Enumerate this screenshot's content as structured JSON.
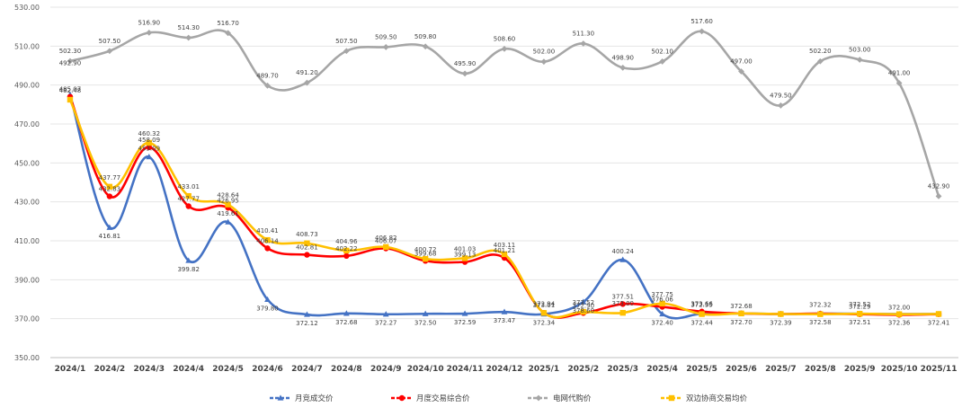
{
  "chart_data": {
    "type": "line",
    "title": "",
    "xlabel": "",
    "ylabel": "",
    "ylim": [
      350,
      530
    ],
    "yticks": [
      "350.00",
      "370.00",
      "390.00",
      "410.00",
      "430.00",
      "450.00",
      "470.00",
      "490.00",
      "510.00",
      "530.00"
    ],
    "categories": [
      "2024/1",
      "2024/2",
      "2024/3",
      "2024/4",
      "2024/5",
      "2024/6",
      "2024/7",
      "2024/8",
      "2024/9",
      "2024/10",
      "2024/11",
      "2024/12",
      "2025/1",
      "2025/2",
      "2025/3",
      "2025/4",
      "2025/5",
      "2025/6",
      "2025/7",
      "2025/8",
      "2025/9",
      "2025/10",
      "2025/11"
    ],
    "grid": true,
    "legend_position": "bottom",
    "series": [
      {
        "name": "月竞成交价",
        "color": "#4472C4",
        "marker": "triangle",
        "values": [
          485.07,
          416.81,
          453.09,
          399.82,
          419.61,
          379.8,
          372.12,
          372.68,
          372.27,
          372.5,
          372.59,
          373.47,
          372.34,
          378.6,
          400.24,
          372.4,
          372.44,
          372.7,
          372.39,
          372.58,
          372.51,
          372.36,
          372.41
        ],
        "labels": [
          "485.07",
          "416.81",
          "453.09",
          "399.82",
          "419.61",
          "379.80",
          "372.12",
          "372.68",
          "372.27",
          "372.50",
          "372.59",
          "373.47",
          "372.34",
          "378.60",
          "400.24",
          "372.40",
          "372.44",
          "372.70",
          "372.39",
          "372.58",
          "372.51",
          "372.36",
          "372.41"
        ]
      },
      {
        "name": "月度交易综合价",
        "color": "#FF0000",
        "marker": "circle",
        "values": [
          484.0,
          432.83,
          458.09,
          427.77,
          426.95,
          406.14,
          402.81,
          402.22,
          406.07,
          399.68,
          399.13,
          401.21,
          373.01,
          372.9,
          377.51,
          376.06,
          373.66,
          372.68,
          372.39,
          372.58,
          372.29,
          372.0,
          372.3
        ],
        "labels": [
          "",
          "432.83",
          "458.09",
          "427.77",
          "426.95",
          "406.14",
          "402.81",
          "402.22",
          "406.07",
          "399.68",
          "399.13",
          "401.21",
          "373.01",
          "372.90",
          "377.51",
          "376.06",
          "373.66",
          "372.68",
          "",
          "",
          "372.29",
          "372.00",
          ""
        ]
      },
      {
        "name": "电网代购价",
        "color": "#A6A6A6",
        "marker": "diamond",
        "values": [
          502.3,
          507.5,
          516.9,
          514.3,
          516.7,
          489.7,
          491.2,
          507.5,
          509.5,
          509.8,
          495.9,
          508.6,
          502.0,
          511.3,
          498.9,
          502.1,
          517.6,
          497.0,
          479.5,
          502.2,
          503.0,
          491.0,
          432.9
        ],
        "labels": [
          "502.30",
          "507.50",
          "516.90",
          "514.30",
          "516.70",
          "489.70",
          "491.20",
          "507.50",
          "509.50",
          "509.80",
          "495.90",
          "508.60",
          "502.00",
          "511.30",
          "498.90",
          "502.10",
          "517.60",
          "497.00",
          "479.50",
          "502.20",
          "503.00",
          "491.00",
          "432.90"
        ]
      },
      {
        "name": "双边协商交易均价",
        "color": "#FFC000",
        "marker": "square",
        "values": [
          482.48,
          437.77,
          460.32,
          433.01,
          428.64,
          410.41,
          408.73,
          404.96,
          406.82,
          400.72,
          401.03,
          403.11,
          372.94,
          373.52,
          373.0,
          377.75,
          372.35,
          372.68,
          372.39,
          372.32,
          372.52,
          372.3,
          372.41
        ],
        "labels": [
          "482.48",
          "437.77",
          "460.32",
          "433.01",
          "428.64",
          "410.41",
          "408.73",
          "404.96",
          "406.82",
          "400.72",
          "401.03",
          "403.11",
          "372.94",
          "373.52",
          "373.00",
          "377.75",
          "372.35",
          "",
          "",
          "372.32",
          "372.52",
          "",
          ""
        ]
      }
    ],
    "annotations": [
      "492.90"
    ]
  }
}
